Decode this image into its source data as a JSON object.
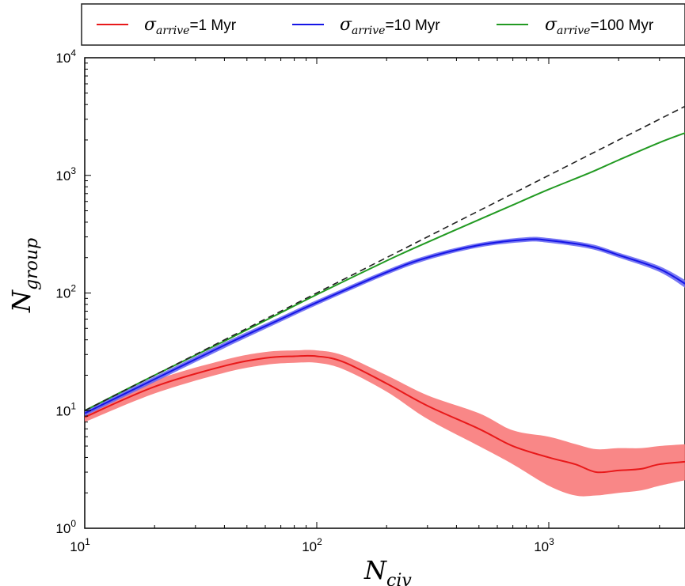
{
  "chart_data": {
    "type": "line",
    "scale": {
      "x": "log",
      "y": "log"
    },
    "xlim": [
      10,
      4000
    ],
    "ylim": [
      1,
      10000
    ],
    "xticks": [
      {
        "value": 10,
        "base": "10",
        "exp": "1"
      },
      {
        "value": 100,
        "base": "10",
        "exp": "2"
      },
      {
        "value": 1000,
        "base": "10",
        "exp": "3"
      }
    ],
    "yticks": [
      {
        "value": 1,
        "base": "10",
        "exp": "0"
      },
      {
        "value": 10,
        "base": "10",
        "exp": "1"
      },
      {
        "value": 100,
        "base": "10",
        "exp": "2"
      },
      {
        "value": 1000,
        "base": "10",
        "exp": "3"
      },
      {
        "value": 10000,
        "base": "10",
        "exp": "4"
      }
    ],
    "xlabel": {
      "main": "N",
      "sub": "civ"
    },
    "ylabel": {
      "main": "N",
      "sub": "group"
    },
    "legend": {
      "placement": "top",
      "border": true
    },
    "series": [
      {
        "legend_symbol": "σ",
        "legend_sub": "arrive",
        "legend_value": "=1 Myr",
        "color": "#e8191a",
        "band_color": "#f87a7a",
        "x": [
          10,
          20,
          40,
          60,
          80,
          100,
          130,
          200,
          300,
          500,
          700,
          1000,
          1300,
          1600,
          2000,
          2500,
          3000,
          4000
        ],
        "y": [
          8.8,
          16,
          24,
          28,
          29,
          29,
          26,
          17,
          11,
          7,
          5,
          4,
          3.5,
          3,
          3.1,
          3.2,
          3.5,
          3.7
        ],
        "y_low": [
          8,
          14,
          21,
          24.5,
          25.5,
          25.5,
          22.5,
          14.5,
          8.5,
          5,
          3.5,
          2.3,
          1.9,
          1.9,
          2.0,
          2.1,
          2.3,
          2.6
        ],
        "y_high": [
          9.6,
          18,
          27,
          31.5,
          32.5,
          32.5,
          29.5,
          20,
          13.5,
          9.5,
          6.8,
          6,
          5.2,
          4.7,
          4.8,
          4.8,
          5.0,
          5.2
        ]
      },
      {
        "legend_symbol": "σ",
        "legend_sub": "arrive",
        "legend_value": "=10 Myr",
        "color": "#1515e6",
        "band_color": "#6a6af2",
        "x": [
          10,
          20,
          40,
          70,
          100,
          200,
          300,
          500,
          800,
          1000,
          1500,
          2000,
          3000,
          4000
        ],
        "y": [
          9.5,
          18.5,
          36,
          60,
          83,
          150,
          200,
          255,
          285,
          280,
          250,
          210,
          160,
          115
        ],
        "y_low": [
          9,
          17.5,
          34,
          57,
          79,
          143,
          191,
          244,
          272,
          267,
          238,
          200,
          151,
          106
        ],
        "y_high": [
          10,
          19.5,
          38,
          63,
          87,
          157,
          209,
          266,
          298,
          293,
          262,
          220,
          169,
          124
        ]
      },
      {
        "legend_symbol": "σ",
        "legend_sub": "arrive",
        "legend_value": "=100 Myr",
        "color": "#229a22",
        "x": [
          10,
          20,
          40,
          70,
          100,
          200,
          300,
          500,
          700,
          1000,
          1500,
          2000,
          3000,
          4000
        ],
        "y": [
          10,
          20,
          39,
          68,
          97,
          188,
          270,
          420,
          560,
          760,
          1050,
          1350,
          1900,
          2350
        ]
      },
      {
        "style": "dashed",
        "color": "#222222",
        "x": [
          10,
          4000
        ],
        "y": [
          10,
          4000
        ]
      }
    ]
  }
}
